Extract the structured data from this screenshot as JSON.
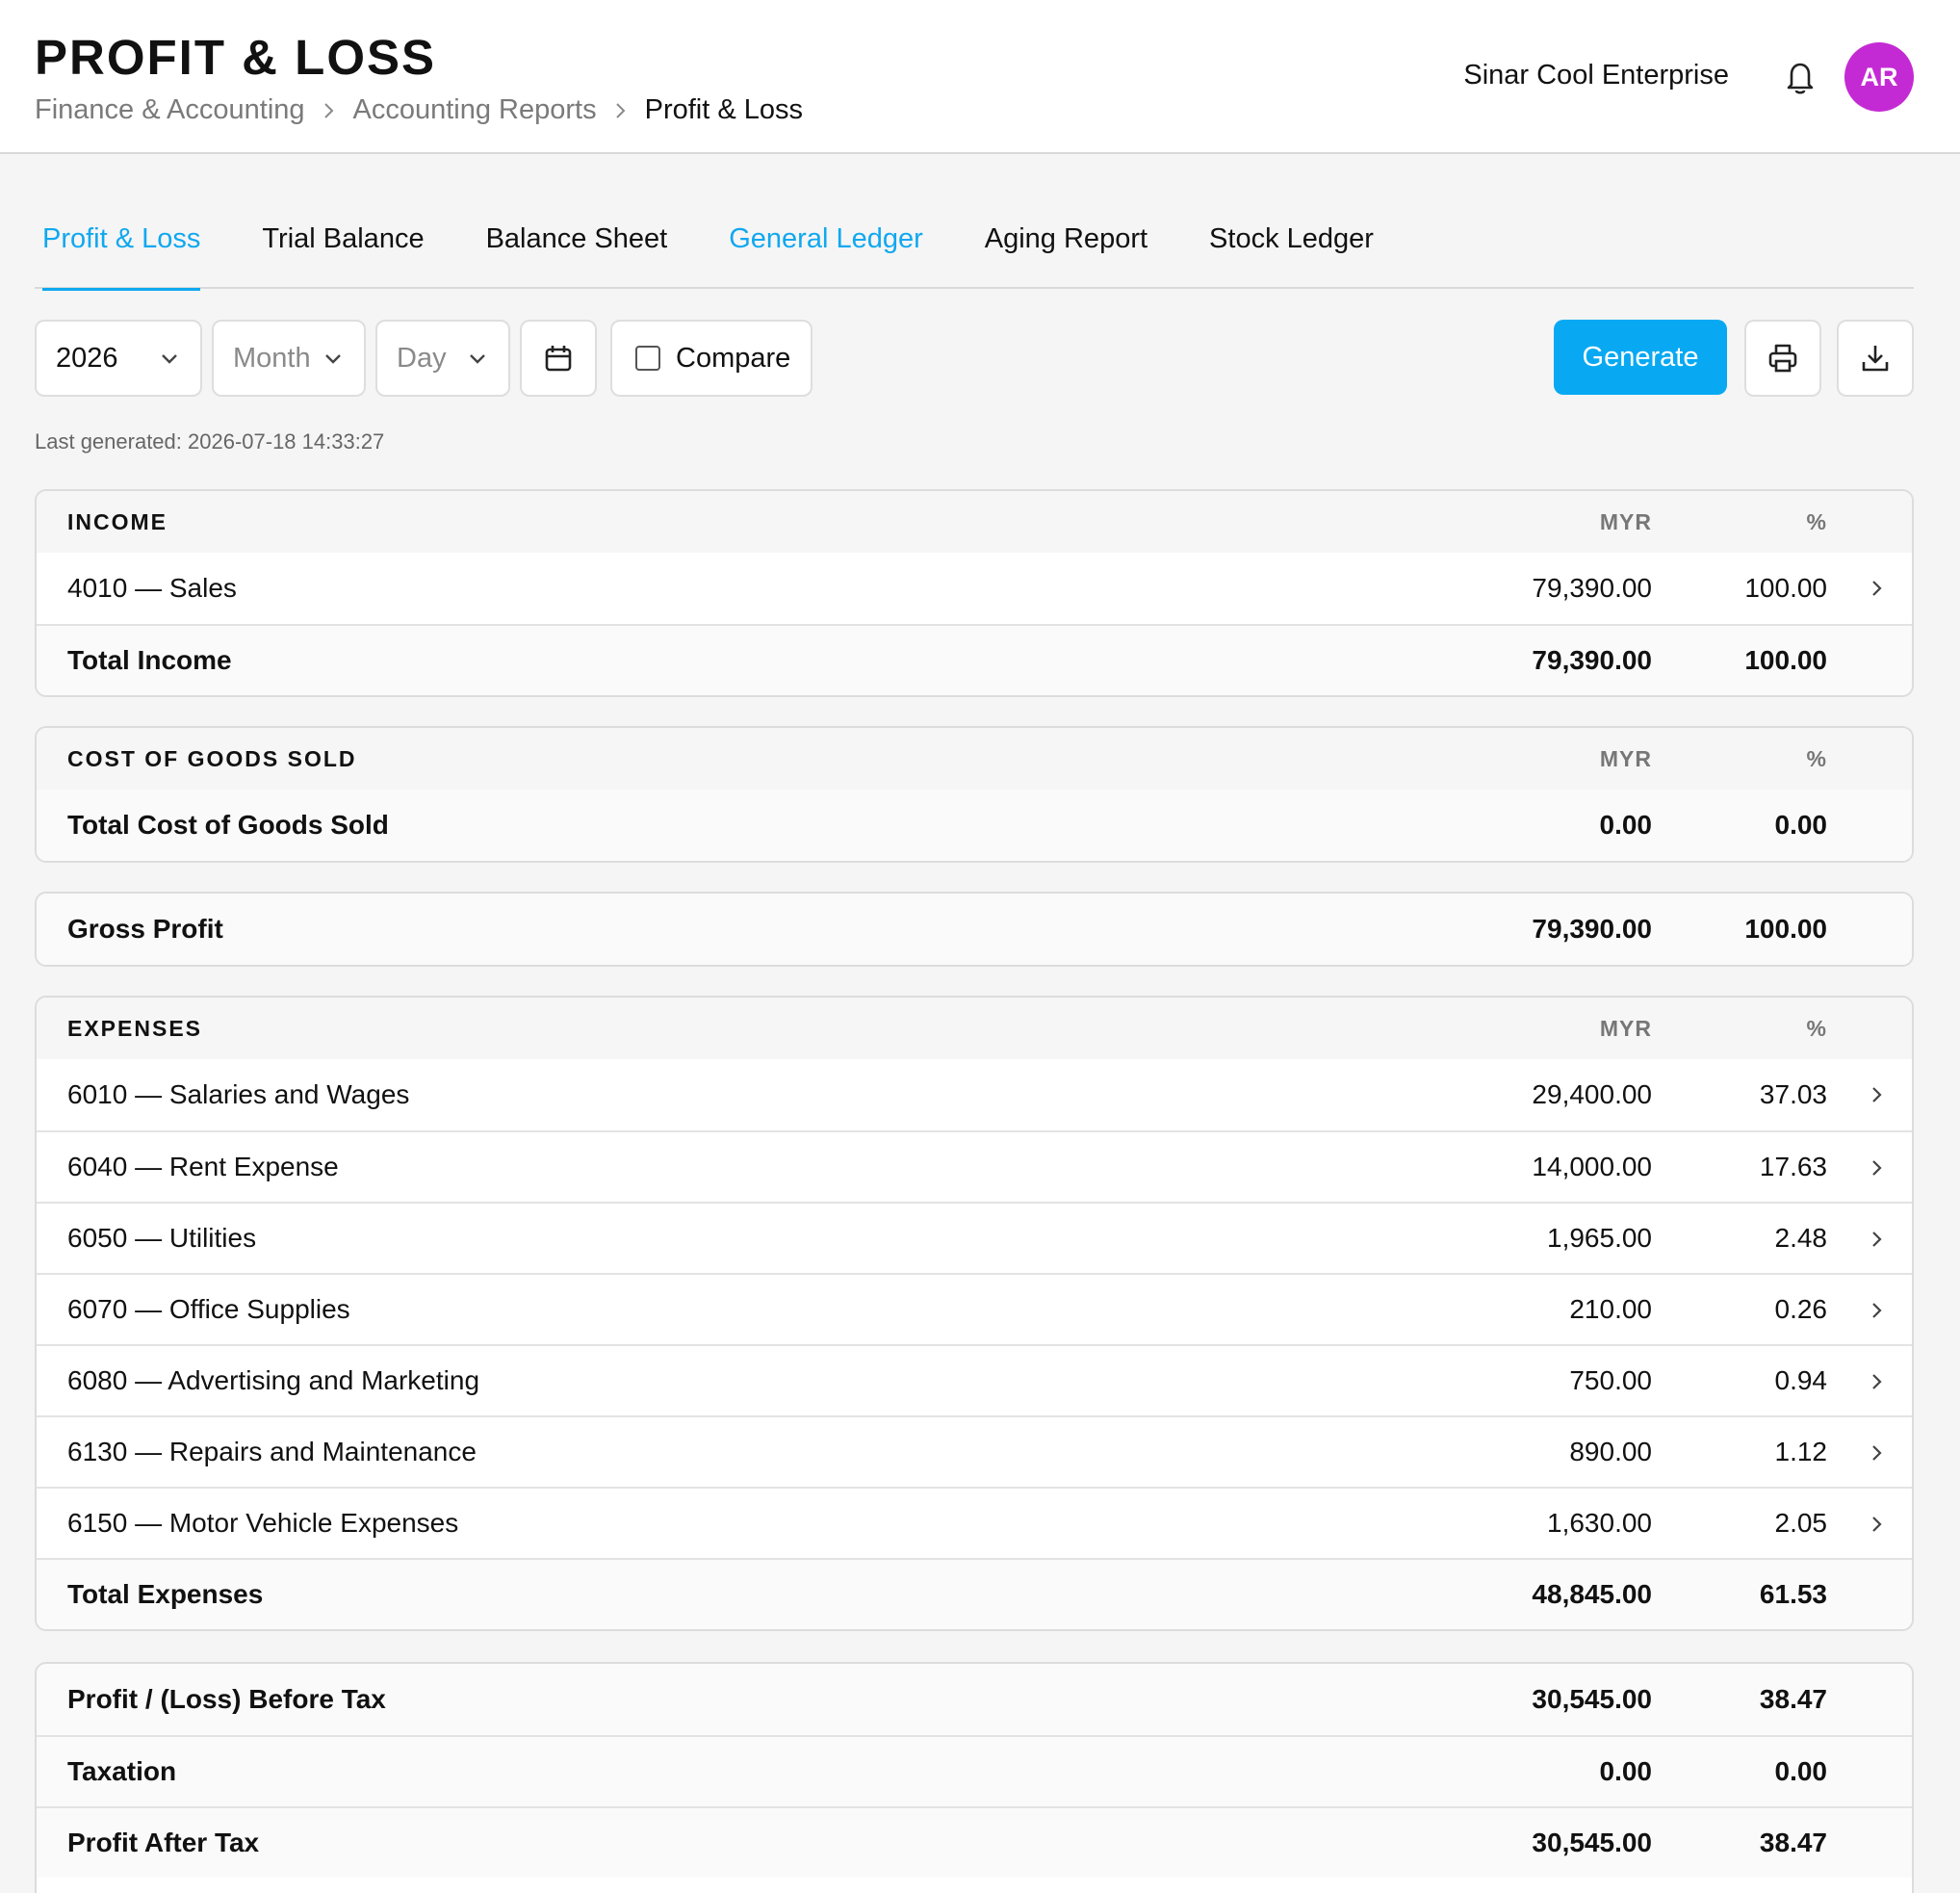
{
  "header": {
    "title": "PROFIT & LOSS",
    "breadcrumb": [
      "Finance & Accounting",
      "Accounting Reports",
      "Profit & Loss"
    ],
    "organization": "Sinar Cool Enterprise",
    "avatar_initials": "AR",
    "avatar_color": "#c42ad4"
  },
  "tabs": [
    {
      "label": "Profit & Loss",
      "state": "active"
    },
    {
      "label": "Trial Balance",
      "state": "normal"
    },
    {
      "label": "Balance Sheet",
      "state": "normal"
    },
    {
      "label": "General Ledger",
      "state": "link"
    },
    {
      "label": "Aging Report",
      "state": "normal"
    },
    {
      "label": "Stock Ledger",
      "state": "normal"
    }
  ],
  "toolbar": {
    "year": "2026",
    "month_placeholder": "Month",
    "day_placeholder": "Day",
    "compare_label": "Compare",
    "compare_checked": false,
    "generate_label": "Generate",
    "accent_color": "#08a9f2"
  },
  "last_generated": "Last generated: 2026-07-18 14:33:27",
  "income": {
    "heading": "INCOME",
    "col_myr": "MYR",
    "col_pct": "%",
    "rows": [
      {
        "label": "4010 — Sales",
        "myr": "79,390.00",
        "pct": "100.00"
      }
    ],
    "total": {
      "label": "Total Income",
      "myr": "79,390.00",
      "pct": "100.00"
    }
  },
  "cogs": {
    "heading": "COST OF GOODS SOLD",
    "col_myr": "MYR",
    "col_pct": "%",
    "total": {
      "label": "Total Cost of Goods Sold",
      "myr": "0.00",
      "pct": "0.00"
    }
  },
  "gross_profit": {
    "label": "Gross Profit",
    "myr": "79,390.00",
    "pct": "100.00"
  },
  "expenses": {
    "heading": "EXPENSES",
    "col_myr": "MYR",
    "col_pct": "%",
    "rows": [
      {
        "label": "6010 — Salaries and Wages",
        "myr": "29,400.00",
        "pct": "37.03"
      },
      {
        "label": "6040 — Rent Expense",
        "myr": "14,000.00",
        "pct": "17.63"
      },
      {
        "label": "6050 — Utilities",
        "myr": "1,965.00",
        "pct": "2.48"
      },
      {
        "label": "6070 — Office Supplies",
        "myr": "210.00",
        "pct": "0.26"
      },
      {
        "label": "6080 — Advertising and Marketing",
        "myr": "750.00",
        "pct": "0.94"
      },
      {
        "label": "6130 — Repairs and Maintenance",
        "myr": "890.00",
        "pct": "1.12"
      },
      {
        "label": "6150 — Motor Vehicle Expenses",
        "myr": "1,630.00",
        "pct": "2.05"
      }
    ],
    "total": {
      "label": "Total Expenses",
      "myr": "48,845.00",
      "pct": "61.53"
    }
  },
  "summary": [
    {
      "label": "Profit / (Loss) Before Tax",
      "myr": "30,545.00",
      "pct": "38.47"
    },
    {
      "label": "Taxation",
      "myr": "0.00",
      "pct": "0.00"
    },
    {
      "label": "Profit After Tax",
      "myr": "30,545.00",
      "pct": "38.47"
    }
  ]
}
